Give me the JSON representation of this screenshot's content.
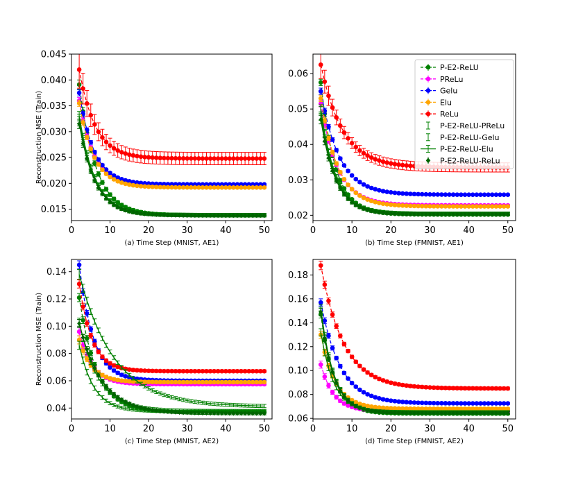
{
  "chart_data": [
    {
      "id": "a",
      "type": "line",
      "xlabel": "(a) Time Step (MNIST, AE1)",
      "ylabel": "Reconstruction MSE (Train)",
      "xlim": [
        0,
        52
      ],
      "ylim": [
        0.0128,
        0.045
      ],
      "xticks": [
        0,
        10,
        20,
        30,
        40,
        50
      ],
      "yticks": [
        0.015,
        0.02,
        0.025,
        0.03,
        0.035,
        0.04,
        0.045
      ],
      "ytick_labels": [
        "0.015",
        "0.020",
        "0.025",
        "0.030",
        "0.035",
        "0.040",
        "0.045"
      ],
      "series": [
        {
          "name": "P-E2-ReLU",
          "start": 0.0391,
          "end": 0.0138,
          "k": 0.23,
          "err": 0.0003
        },
        {
          "name": "PReLu",
          "start": 0.036,
          "end": 0.0193,
          "k": 0.26,
          "err": 0.0002
        },
        {
          "name": "Gelu",
          "start": 0.0375,
          "end": 0.0198,
          "k": 0.26,
          "err": 0.0002
        },
        {
          "name": "Elu",
          "start": 0.0355,
          "end": 0.0192,
          "k": 0.26,
          "err": 0.0002
        },
        {
          "name": "ReLu",
          "start": 0.042,
          "end": 0.0248,
          "k": 0.24,
          "err": 0.0012
        },
        {
          "name": "P-E2-ReLU-PReLu",
          "start": 0.033,
          "end": 0.0139,
          "k": 0.24,
          "err": 0.0003
        },
        {
          "name": "P-E2-ReLU-Gelu",
          "start": 0.0325,
          "end": 0.0139,
          "k": 0.24,
          "err": 0.0003
        },
        {
          "name": "P-E2-ReLU-Elu",
          "start": 0.032,
          "end": 0.0139,
          "k": 0.24,
          "err": 0.0003
        },
        {
          "name": "P-E2-ReLU-ReLu",
          "start": 0.0315,
          "end": 0.0138,
          "k": 0.24,
          "err": 0.0003
        }
      ]
    },
    {
      "id": "b",
      "type": "line",
      "xlabel": "(b) Time Step (FMNIST, AE1)",
      "ylabel": "",
      "xlim": [
        0,
        52
      ],
      "ylim": [
        0.0185,
        0.0655
      ],
      "xticks": [
        0,
        10,
        20,
        30,
        40,
        50
      ],
      "yticks": [
        0.02,
        0.03,
        0.04,
        0.05,
        0.06
      ],
      "ytick_labels": [
        "0.02",
        "0.03",
        "0.04",
        "0.05",
        "0.06"
      ],
      "series": [
        {
          "name": "P-E2-ReLU",
          "start": 0.0575,
          "end": 0.0202,
          "k": 0.27,
          "err": 0.0003
        },
        {
          "name": "PReLu",
          "start": 0.0515,
          "end": 0.0228,
          "k": 0.23,
          "err": 0.0003
        },
        {
          "name": "Gelu",
          "start": 0.055,
          "end": 0.0258,
          "k": 0.21,
          "err": 0.0003
        },
        {
          "name": "Elu",
          "start": 0.053,
          "end": 0.0225,
          "k": 0.23,
          "err": 0.0003
        },
        {
          "name": "ReLu",
          "start": 0.0625,
          "end": 0.0335,
          "k": 0.18,
          "err": 0.0013
        },
        {
          "name": "P-E2-ReLU-PReLu",
          "start": 0.05,
          "end": 0.0205,
          "k": 0.26,
          "err": 0.0004
        },
        {
          "name": "P-E2-ReLU-Gelu",
          "start": 0.0495,
          "end": 0.0205,
          "k": 0.26,
          "err": 0.0004
        },
        {
          "name": "P-E2-ReLU-Elu",
          "start": 0.048,
          "end": 0.0204,
          "k": 0.26,
          "err": 0.0004
        },
        {
          "name": "P-E2-ReLU-ReLu",
          "start": 0.047,
          "end": 0.0203,
          "k": 0.26,
          "err": 0.0004
        }
      ],
      "legend_position": "top-right"
    },
    {
      "id": "c",
      "type": "line",
      "xlabel": "(c) Time Step (MNIST, AE2)",
      "ylabel": "Reconstruction MSE (Train)",
      "xlim": [
        0,
        52
      ],
      "ylim": [
        0.032,
        0.149
      ],
      "xticks": [
        0,
        10,
        20,
        30,
        40,
        50
      ],
      "yticks": [
        0.04,
        0.06,
        0.08,
        0.1,
        0.12,
        0.14
      ],
      "ytick_labels": [
        "0.04",
        "0.06",
        "0.08",
        "0.10",
        "0.12",
        "0.14"
      ],
      "series": [
        {
          "name": "P-E2-ReLU",
          "start": 0.121,
          "end": 0.037,
          "k": 0.22,
          "err": 0.001
        },
        {
          "name": "PReLu",
          "start": 0.096,
          "end": 0.0575,
          "k": 0.3,
          "err": 0.001
        },
        {
          "name": "Gelu",
          "start": 0.145,
          "end": 0.06,
          "k": 0.27,
          "err": 0.001
        },
        {
          "name": "Elu",
          "start": 0.09,
          "end": 0.059,
          "k": 0.3,
          "err": 0.001
        },
        {
          "name": "ReLu",
          "start": 0.131,
          "end": 0.067,
          "k": 0.3,
          "err": 0.001
        },
        {
          "name": "P-E2-ReLU-PReLu",
          "start": 0.138,
          "end": 0.041,
          "k": 0.11,
          "err": 0.0012
        },
        {
          "name": "P-E2-ReLU-Gelu",
          "start": 0.103,
          "end": 0.038,
          "k": 0.2,
          "err": 0.001
        },
        {
          "name": "P-E2-ReLU-Elu",
          "start": 0.086,
          "end": 0.0375,
          "k": 0.26,
          "err": 0.001
        },
        {
          "name": "P-E2-ReLU-ReLu",
          "start": 0.102,
          "end": 0.036,
          "k": 0.17,
          "err": 0.001
        }
      ]
    },
    {
      "id": "d",
      "type": "line",
      "xlabel": "(d) Time Step (FMNIST, AE2)",
      "ylabel": "",
      "xlim": [
        0,
        52
      ],
      "ylim": [
        0.0595,
        0.193
      ],
      "xticks": [
        0,
        10,
        20,
        30,
        40,
        50
      ],
      "yticks": [
        0.06,
        0.08,
        0.1,
        0.12,
        0.14,
        0.16,
        0.18
      ],
      "ytick_labels": [
        "0.06",
        "0.08",
        "0.10",
        "0.12",
        "0.14",
        "0.16",
        "0.18"
      ],
      "series": [
        {
          "name": "P-E2-ReLU",
          "start": 0.147,
          "end": 0.064,
          "k": 0.3,
          "err": 0.001
        },
        {
          "name": "PReLu",
          "start": 0.105,
          "end": 0.066,
          "k": 0.3,
          "err": 0.001
        },
        {
          "name": "Gelu",
          "start": 0.157,
          "end": 0.0725,
          "k": 0.2,
          "err": 0.001
        },
        {
          "name": "Elu",
          "start": 0.13,
          "end": 0.068,
          "k": 0.27,
          "err": 0.001
        },
        {
          "name": "ReLu",
          "start": 0.188,
          "end": 0.085,
          "k": 0.17,
          "err": 0.0012
        },
        {
          "name": "P-E2-ReLU-PReLu",
          "start": 0.152,
          "end": 0.065,
          "k": 0.3,
          "err": 0.001
        },
        {
          "name": "P-E2-ReLU-Gelu",
          "start": 0.15,
          "end": 0.065,
          "k": 0.3,
          "err": 0.001
        },
        {
          "name": "P-E2-ReLU-Elu",
          "start": 0.132,
          "end": 0.0655,
          "k": 0.3,
          "err": 0.001
        },
        {
          "name": "P-E2-ReLU-ReLu",
          "start": 0.149,
          "end": 0.0645,
          "k": 0.3,
          "err": 0.001
        }
      ]
    }
  ],
  "legend": {
    "entries": [
      {
        "name": "P-E2-ReLU",
        "color": "#008000",
        "marker": "circle",
        "dashed": true
      },
      {
        "name": "PReLu",
        "color": "#ff00ff",
        "marker": "circle",
        "dashed": true
      },
      {
        "name": "Gelu",
        "color": "#0000ff",
        "marker": "circle",
        "dashed": true
      },
      {
        "name": "Elu",
        "color": "#ffa500",
        "marker": "circle",
        "dashed": true
      },
      {
        "name": "ReLu",
        "color": "#ff0000",
        "marker": "circle",
        "dashed": true
      },
      {
        "name": "P-E2-ReLU-PReLu",
        "color": "#008000",
        "marker": "errorbar",
        "dashed": false
      },
      {
        "name": "P-E2-ReLU-Gelu",
        "color": "#008000",
        "marker": "errorbar",
        "dashed": false
      },
      {
        "name": "P-E2-ReLU-Elu",
        "color": "#008000",
        "marker": "errorbar-line",
        "dashed": false
      },
      {
        "name": "P-E2-ReLU-ReLu",
        "color": "#006400",
        "marker": "diamond",
        "dashed": false
      }
    ]
  },
  "x_points": {
    "from": 2,
    "to": 50
  }
}
